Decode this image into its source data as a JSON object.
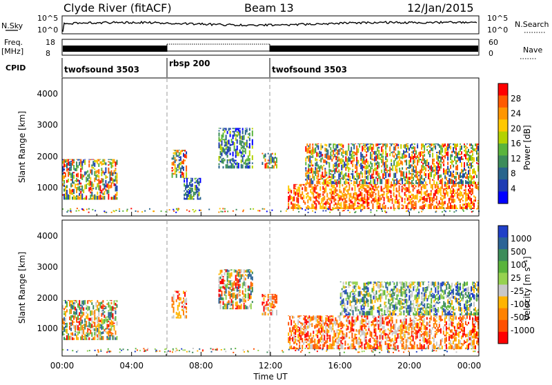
{
  "header": {
    "station": "Clyde River (fitACF)",
    "beam": "Beam 13",
    "date": "12/Jan/2015"
  },
  "strips": {
    "nsky_label": "N.Sky",
    "nsky_ticks": [
      "10^5",
      "10^0"
    ],
    "nsearch_label": "N.Search",
    "freq_label": "Freq.",
    "freq_unit": "[MHz]",
    "freq_ticks": [
      "18",
      "8"
    ],
    "nave_label": "Nave",
    "nave_ticks": [
      "60",
      "0"
    ],
    "cpid_label": "CPID",
    "cpid_segments": [
      {
        "name": "twofsound 3503",
        "start_h": 0,
        "end_h": 6
      },
      {
        "name": "rbsp 200",
        "start_h": 6,
        "end_h": 12
      },
      {
        "name": "twofsound 3503",
        "start_h": 12,
        "end_h": 24
      }
    ]
  },
  "chart_data": [
    {
      "type": "heatmap",
      "title": "Power",
      "xlabel": "Time UT",
      "ylabel": "Slant Range [km]",
      "xlim": [
        0,
        24
      ],
      "ylim": [
        180,
        4600
      ],
      "yticks": [
        "4000",
        "3000",
        "2000",
        "1000"
      ],
      "xticks": [
        "00:00",
        "04:00",
        "08:00",
        "12:00",
        "16:00",
        "20:00",
        "00:00"
      ],
      "colorbar": {
        "label": "Power [dB]",
        "ticks": [
          "28",
          "24",
          "20",
          "16",
          "12",
          "8",
          "4"
        ],
        "colors": [
          "#ff0000",
          "#ff5a00",
          "#ff9600",
          "#ffc800",
          "#b4d200",
          "#5ab43c",
          "#3c8c5a",
          "#28648c",
          "#1e3cb4",
          "#0000ff"
        ]
      },
      "regions": [
        {
          "t0": 0.0,
          "t1": 3.2,
          "r0": 700,
          "r1": 2000,
          "level": "mid"
        },
        {
          "t0": 6.3,
          "t1": 7.2,
          "r0": 1400,
          "r1": 2300,
          "level": "mid"
        },
        {
          "t0": 7.0,
          "t1": 8.0,
          "r0": 700,
          "r1": 1400,
          "level": "low"
        },
        {
          "t0": 9.0,
          "t1": 11.0,
          "r0": 1700,
          "r1": 3000,
          "level": "low"
        },
        {
          "t0": 11.5,
          "t1": 12.4,
          "r0": 1700,
          "r1": 2200,
          "level": "mid"
        },
        {
          "t0": 13.0,
          "t1": 24.0,
          "r0": 400,
          "r1": 1200,
          "level": "high"
        },
        {
          "t0": 14.0,
          "t1": 24.0,
          "r0": 1200,
          "r1": 2500,
          "level": "mid"
        }
      ]
    },
    {
      "type": "heatmap",
      "title": "Velocity",
      "xlabel": "Time UT",
      "ylabel": "Slant Range [km]",
      "xlim": [
        0,
        24
      ],
      "ylim": [
        180,
        4600
      ],
      "yticks": [
        "4000",
        "3000",
        "2000",
        "1000"
      ],
      "xticks": [
        "00:00",
        "04:00",
        "08:00",
        "12:00",
        "16:00",
        "20:00",
        "00:00"
      ],
      "colorbar": {
        "label": "Velocity [m s⁻¹]",
        "ticks": [
          "1000",
          "500",
          "100",
          "25",
          "-25",
          "-100",
          "-500",
          "-1000"
        ],
        "colors": [
          "#2040c8",
          "#2c6496",
          "#3c8c5a",
          "#5ab43c",
          "#96d250",
          "#c8c8c8",
          "#ffb400",
          "#ff8200",
          "#ff5000",
          "#ff0000"
        ]
      },
      "regions": [
        {
          "t0": 0.0,
          "t1": 3.2,
          "r0": 700,
          "r1": 2000,
          "level": "mixed"
        },
        {
          "t0": 6.3,
          "t1": 7.2,
          "r0": 1400,
          "r1": 2300,
          "level": "away"
        },
        {
          "t0": 9.0,
          "t1": 11.0,
          "r0": 1700,
          "r1": 3000,
          "level": "mixed"
        },
        {
          "t0": 11.5,
          "t1": 12.4,
          "r0": 1500,
          "r1": 2200,
          "level": "away"
        },
        {
          "t0": 13.0,
          "t1": 24.0,
          "r0": 400,
          "r1": 1500,
          "level": "away"
        },
        {
          "t0": 16.0,
          "t1": 24.0,
          "r0": 1500,
          "r1": 2600,
          "level": "toward"
        }
      ]
    }
  ]
}
